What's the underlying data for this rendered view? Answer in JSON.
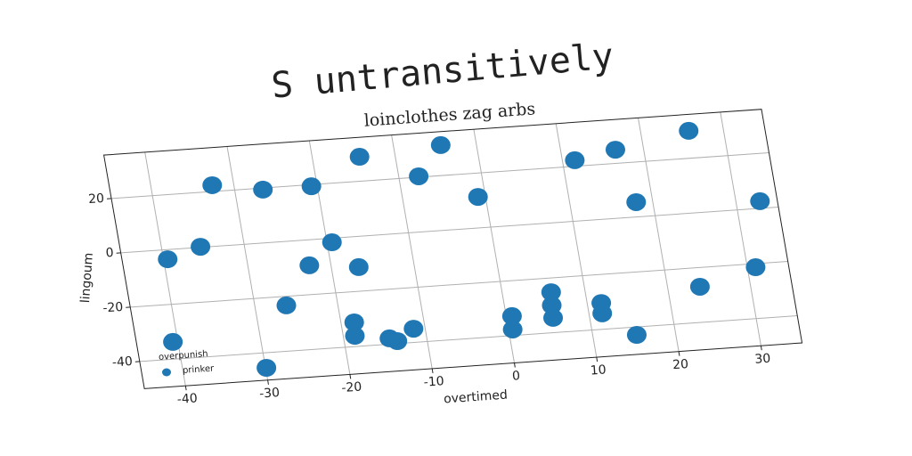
{
  "chart_data": {
    "type": "scatter",
    "title": "S untransitively",
    "subtitle": "loinclothes zag arbs",
    "x_label": "overtimed",
    "y_label": "lingoum",
    "legend_title": "overpunish",
    "legend_loc": "lower left",
    "grid": true,
    "xlim": [
      -45,
      35
    ],
    "ylim": [
      -50,
      36
    ],
    "xticks": [
      -40,
      -30,
      -20,
      -10,
      0,
      10,
      20,
      30
    ],
    "yticks": [
      -40,
      -20,
      0,
      20
    ],
    "series": [
      {
        "name": "prinker",
        "color": "#1f77b4",
        "x": [
          -39.5,
          -35.3,
          -32.6,
          -40.6,
          -26.6,
          -29.9,
          -26.2,
          -20.7,
          -22.6,
          -19.4,
          -14.3,
          -16.7,
          -18.4,
          -18.6,
          -14.5,
          -13.6,
          -11.4,
          -7.6,
          -4.3,
          -0.9,
          0.7,
          0.5,
          5.9,
          5.7,
          5.6,
          11.5,
          11.7,
          11.6,
          16.6,
          18.0,
          15.3,
          25.8,
          23.9,
          31.0,
          32.9
        ],
        "values": [
          -3.5,
          0.2,
          22.3,
          -33.7,
          19.4,
          -45.5,
          -23.3,
          19.4,
          -9.3,
          -1.5,
          28.9,
          -11.2,
          -31.2,
          -36.1,
          -37.9,
          -39.1,
          -35.0,
          20.3,
          31.1,
          11.3,
          -32.9,
          -37.8,
          -25.2,
          -30.0,
          -34.6,
          22.2,
          -30.4,
          -34.2,
          25.0,
          5.4,
          -42.9,
          30.0,
          -27.0,
          -21.3,
          2.6
        ]
      }
    ]
  }
}
